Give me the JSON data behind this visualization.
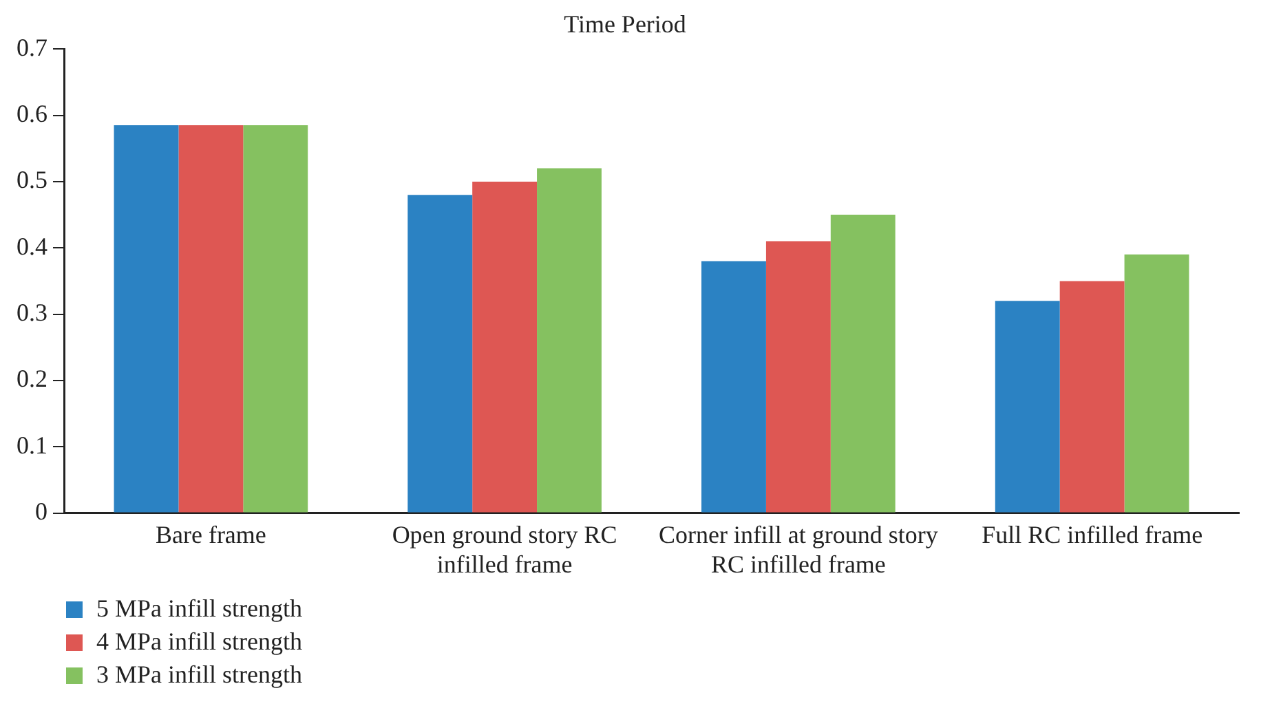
{
  "chart_data": {
    "type": "bar",
    "title": "Time Period",
    "categories": [
      "Bare frame",
      "Open ground story RC infilled frame",
      "Corner infill at ground story RC infilled frame",
      "Full RC infilled frame"
    ],
    "series": [
      {
        "name": "5 MPa infill strength",
        "color": "#2b82c3",
        "values": [
          0.585,
          0.48,
          0.38,
          0.32
        ]
      },
      {
        "name": "4 MPa infill strength",
        "color": "#de5753",
        "values": [
          0.585,
          0.5,
          0.41,
          0.35
        ]
      },
      {
        "name": "3 MPa infill strength",
        "color": "#85c160",
        "values": [
          0.585,
          0.52,
          0.45,
          0.39
        ]
      }
    ],
    "ylim": [
      0,
      0.7
    ],
    "yticks": [
      0,
      0.1,
      0.2,
      0.3,
      0.4,
      0.5,
      0.6,
      0.7
    ],
    "grid": false,
    "legend": "bottom left"
  }
}
